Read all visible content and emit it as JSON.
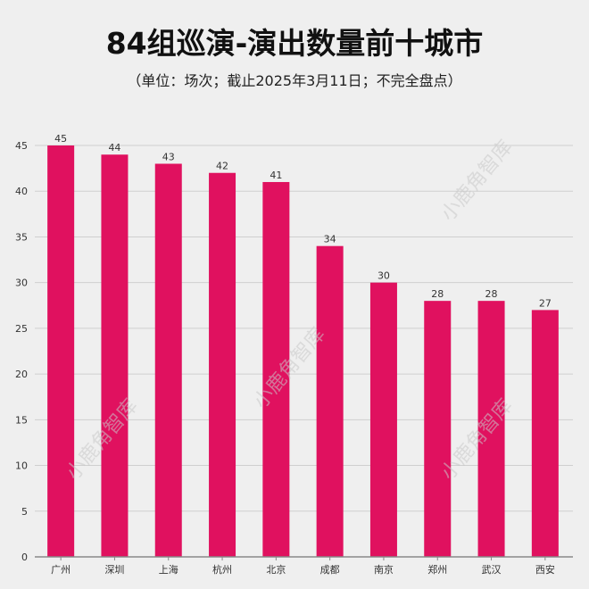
{
  "chart_data": {
    "type": "bar",
    "title": "84组巡演-演出数量前十城市",
    "subtitle": "（单位：场次；截止2025年3月11日；不完全盘点）",
    "categories": [
      "广州",
      "深圳",
      "上海",
      "杭州",
      "北京",
      "成都",
      "南京",
      "郑州",
      "武汉",
      "西安"
    ],
    "values": [
      45,
      44,
      43,
      42,
      41,
      34,
      30,
      28,
      28,
      27
    ],
    "xlabel": "",
    "ylabel": "",
    "ylim": [
      0,
      45
    ],
    "yticks": [
      0,
      5,
      10,
      15,
      20,
      25,
      30,
      35,
      40,
      45
    ],
    "grid": true,
    "data_labels": true,
    "bar_color": "#e0115f"
  },
  "watermark": "小鹿角智库"
}
